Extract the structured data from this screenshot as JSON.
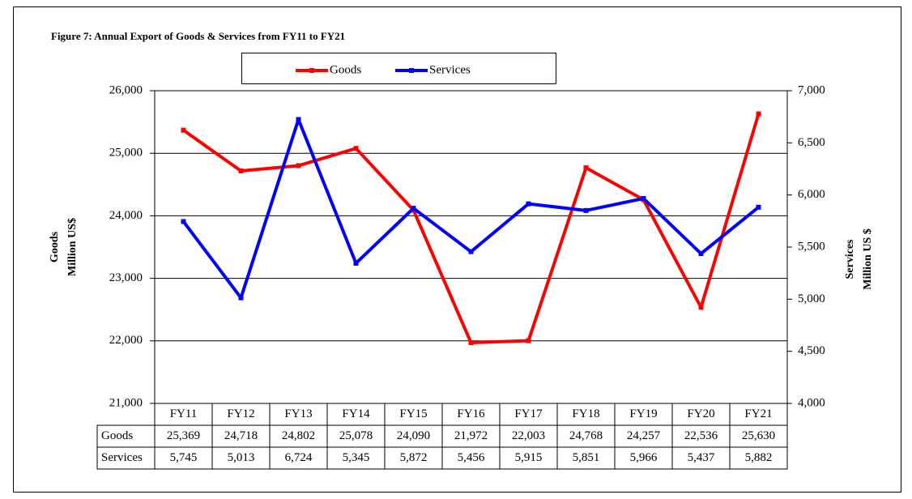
{
  "chart_data": {
    "type": "line",
    "title": "Figure 7: Annual Export of Goods & Services from FY11 to FY21",
    "categories": [
      "FY11",
      "FY12",
      "FY13",
      "FY14",
      "FY15",
      "FY16",
      "FY17",
      "FY18",
      "FY19",
      "FY20",
      "FY21"
    ],
    "series": [
      {
        "name": "Goods",
        "color": "#ff0000",
        "axis": "y",
        "values": [
          25369,
          24718,
          24802,
          25078,
          24090,
          21972,
          22003,
          24768,
          24257,
          22536,
          25630
        ],
        "value_labels": [
          "25,369",
          "24,718",
          "24,802",
          "25,078",
          "24,090",
          "21,972",
          "22,003",
          "24,768",
          "24,257",
          "22,536",
          "25,630"
        ]
      },
      {
        "name": "Services",
        "color": "#0000ff",
        "axis": "y2",
        "values": [
          5745,
          5013,
          6724,
          5345,
          5872,
          5456,
          5915,
          5851,
          5966,
          5437,
          5882
        ],
        "value_labels": [
          "5,745",
          "5,013",
          "6,724",
          "5,345",
          "5,872",
          "5,456",
          "5,915",
          "5,851",
          "5,966",
          "5,437",
          "5,882"
        ]
      }
    ],
    "ylabel": [
      "Goods",
      "Million US$"
    ],
    "y2label": [
      "Services",
      "Million US $"
    ],
    "ylim": [
      21000,
      26000
    ],
    "yticks": [
      {
        "value": 21000,
        "label": "21,000"
      },
      {
        "value": 22000,
        "label": "22,000"
      },
      {
        "value": 23000,
        "label": "23,000"
      },
      {
        "value": 24000,
        "label": "24,000"
      },
      {
        "value": 25000,
        "label": "25,000"
      },
      {
        "value": 26000,
        "label": "26,000"
      }
    ],
    "y2lim": [
      4000,
      7000
    ],
    "y2ticks": [
      {
        "value": 4000,
        "label": "4,000"
      },
      {
        "value": 4500,
        "label": "4,500"
      },
      {
        "value": 5000,
        "label": "5,000"
      },
      {
        "value": 5500,
        "label": "5,500"
      },
      {
        "value": 6000,
        "label": "6,000"
      },
      {
        "value": 6500,
        "label": "6,500"
      },
      {
        "value": 7000,
        "label": "7,000"
      }
    ],
    "grid": true,
    "legend": "top",
    "data_table": true
  }
}
